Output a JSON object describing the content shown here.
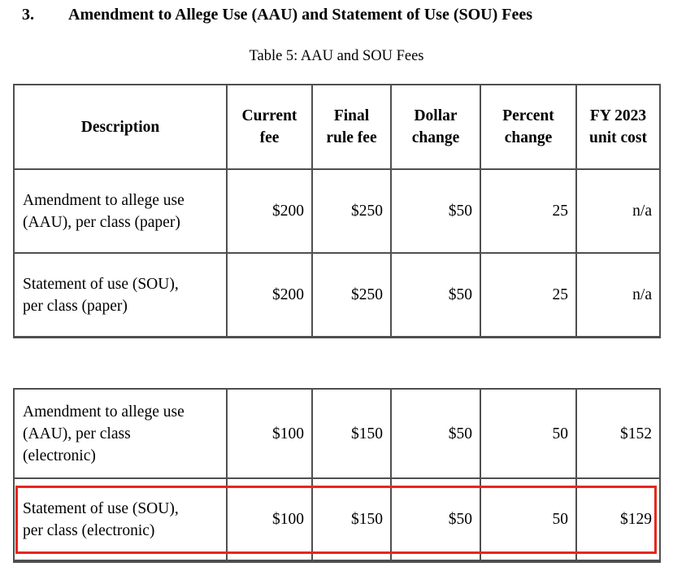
{
  "document": {
    "section_number": "3.",
    "section_heading": "Amendment to Allege Use (AAU) and Statement of Use (SOU) Fees",
    "table_caption": "Table 5: AAU and SOU Fees"
  },
  "columns": {
    "description": "Description",
    "current_fee": "Current\nfee",
    "final_rule_fee": "Final\nrule fee",
    "dollar_change": "Dollar\nchange",
    "percent_change": "Percent\nchange",
    "fy2023_unit_cost": "FY 2023\nunit cost"
  },
  "table1": {
    "rows": [
      {
        "description": "Amendment to allege use\n(AAU), per class (paper)",
        "current_fee": "$200",
        "final_rule_fee": "$250",
        "dollar_change": "$50",
        "percent_change": "25",
        "fy2023_unit_cost": "n/a"
      },
      {
        "description": "Statement of use (SOU),\nper class (paper)",
        "current_fee": "$200",
        "final_rule_fee": "$250",
        "dollar_change": "$50",
        "percent_change": "25",
        "fy2023_unit_cost": "n/a"
      }
    ]
  },
  "table2": {
    "rows": [
      {
        "description": "Amendment to allege use\n(AAU), per class\n(electronic)",
        "current_fee": "$100",
        "final_rule_fee": "$150",
        "dollar_change": "$50",
        "percent_change": "50",
        "fy2023_unit_cost": "$152"
      },
      {
        "description": "Statement of use (SOU),\nper class (electronic)",
        "current_fee": "$100",
        "final_rule_fee": "$150",
        "dollar_change": "$50",
        "percent_change": "50",
        "fy2023_unit_cost": "$129"
      }
    ]
  },
  "highlight": {
    "color": "#e8261d",
    "highlighted_row": "Statement of use (SOU), per class (electronic)"
  }
}
